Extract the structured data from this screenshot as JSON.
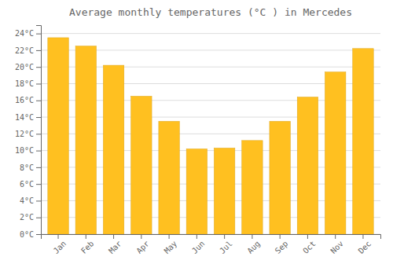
{
  "chart_data": {
    "type": "bar",
    "title": "Average monthly temperatures (°C ) in Mercedes",
    "categories": [
      "Jan",
      "Feb",
      "Mar",
      "Apr",
      "May",
      "Jun",
      "Jul",
      "Aug",
      "Sep",
      "Oct",
      "Nov",
      "Dec"
    ],
    "values": [
      23.5,
      22.5,
      20.2,
      16.5,
      13.5,
      10.2,
      10.3,
      11.2,
      13.5,
      16.4,
      19.4,
      22.2
    ],
    "color": "#FFC020",
    "ylim": [
      0,
      25
    ],
    "yticks": [
      {
        "value": 0,
        "label": "0°C"
      },
      {
        "value": 2,
        "label": "2°C"
      },
      {
        "value": 4,
        "label": "4°C"
      },
      {
        "value": 6,
        "label": "6°C"
      },
      {
        "value": 8,
        "label": "8°C"
      },
      {
        "value": 10,
        "label": "10°C"
      },
      {
        "value": 12,
        "label": "12°C"
      },
      {
        "value": 14,
        "label": "14°C"
      },
      {
        "value": 16,
        "label": "16°C"
      },
      {
        "value": 18,
        "label": "18°C"
      },
      {
        "value": 20,
        "label": "20°C"
      },
      {
        "value": 22,
        "label": "22°C"
      },
      {
        "value": 24,
        "label": "24°C"
      }
    ],
    "grid": true
  }
}
